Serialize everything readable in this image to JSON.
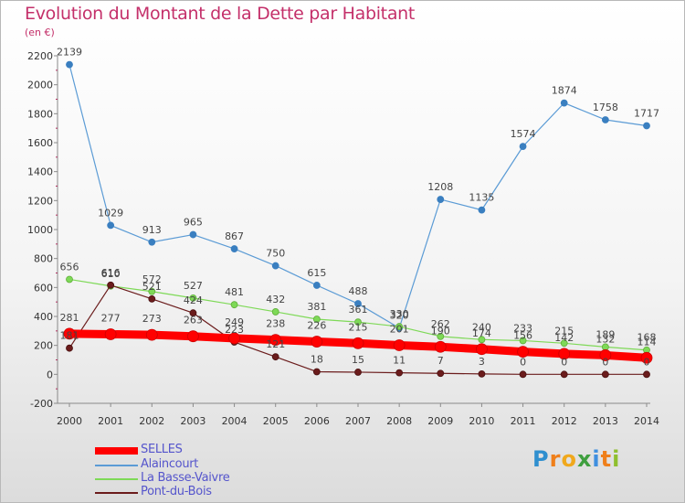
{
  "title": "Evolution du Montant de la Dette par Habitant",
  "subtitle": "(en €)",
  "logo": {
    "text": "Proxiti",
    "letters": [
      "P",
      "r",
      "o",
      "x",
      "i",
      "t",
      "i"
    ],
    "colors": [
      "#2f8fcf",
      "#ef7f1a",
      "#f0a81c",
      "#3f9f3f",
      "#3f8fdf",
      "#ef7f1a",
      "#8fbf2f"
    ]
  },
  "chart_data": {
    "type": "line",
    "title": "Evolution du Montant de la Dette par Habitant",
    "ylabel": "(en €)",
    "xlabel": "",
    "x": [
      "2000",
      "2001",
      "2002",
      "2003",
      "2004",
      "2005",
      "2006",
      "2007",
      "2008",
      "2009",
      "2010",
      "2011",
      "2012",
      "2013",
      "2014"
    ],
    "ylim": [
      -200,
      2200
    ],
    "yticks": [
      "-200",
      "0",
      "200",
      "400",
      "600",
      "800",
      "1000",
      "1200",
      "1400",
      "1600",
      "1800",
      "2000",
      "2200"
    ],
    "grid": false,
    "legend_position": "bottom",
    "series": [
      {
        "name": "Alaincourt",
        "color": "#5b9bd5",
        "values": [
          2139,
          1029,
          913,
          965,
          867,
          750,
          615,
          488,
          320,
          1208,
          1135,
          1574,
          1874,
          1758,
          1717
        ]
      },
      {
        "name": "La Basse-Vaivre",
        "color": "#7ed957",
        "values": [
          656,
          610,
          572,
          527,
          481,
          432,
          381,
          361,
          330,
          262,
          240,
          233,
          215,
          189,
          168
        ]
      },
      {
        "name": "Pont-du-Bois",
        "color": "#6b1c1c",
        "values": [
          181,
          616,
          521,
          424,
          223,
          121,
          18,
          15,
          11,
          7,
          3,
          0,
          0,
          0,
          0
        ]
      },
      {
        "name": "SELLES",
        "color": "#ff0000",
        "values": [
          281,
          277,
          273,
          263,
          249,
          238,
          226,
          215,
          201,
          190,
          174,
          156,
          142,
          132,
          114
        ]
      }
    ]
  }
}
